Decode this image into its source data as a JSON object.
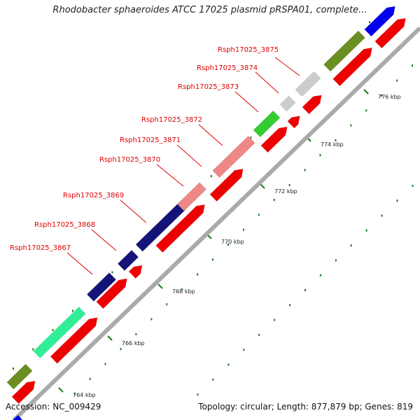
{
  "title": "Rhodobacter sphaeroides ATCC 17025 plasmid pRSPA01, complete...",
  "footer": {
    "accession": "Accession: NC_009429",
    "summary": "Topology: circular; Length: 877,879 bp; Genes: 819"
  },
  "gene_labels": [
    "Rsph17025_3875",
    "Rsph17025_3874",
    "Rsph17025_3873",
    "Rsph17025_3872",
    "Rsph17025_3871",
    "Rsph17025_3870",
    "Rsph17025_3869",
    "Rsph17025_3868",
    "Rsph17025_3867"
  ],
  "ticks": [
    "764 kbp",
    "766 kbp",
    "768 kbp",
    "770 kbp",
    "772 kbp",
    "774 kbp",
    "776 kbp"
  ],
  "colors": {
    "cds": "#ee0000",
    "olive": "#6b8e23",
    "aqua_green": "#33ee99",
    "navy": "#141478",
    "salmon": "#ee8888",
    "green": "#33cc33",
    "grey": "#cccccc",
    "blue": "#0000ee",
    "label": "#e00000",
    "tick_mark": "#1a7a1a"
  }
}
